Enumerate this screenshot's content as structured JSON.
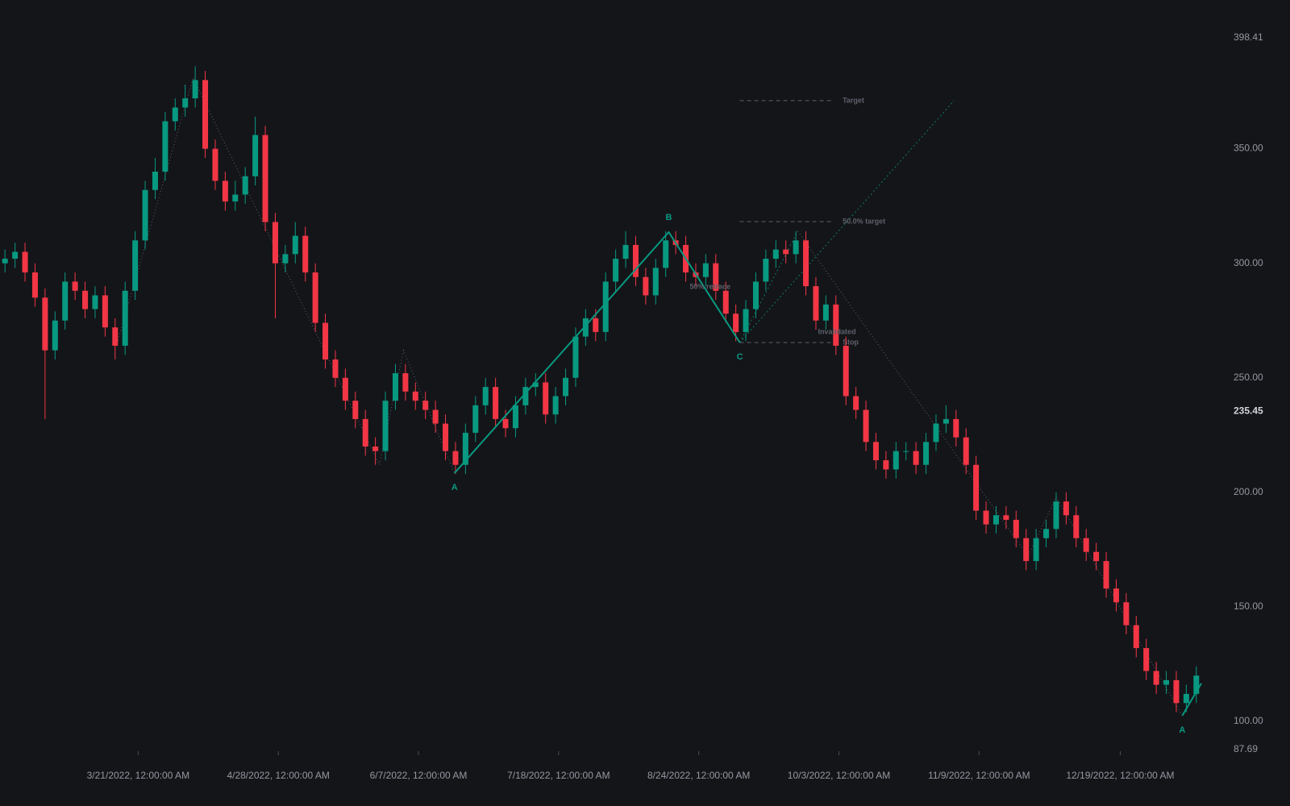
{
  "chart_data": {
    "type": "candlestick",
    "colors": {
      "up": "#089981",
      "down": "#f23645",
      "wave": "#089981",
      "guide": "#5d616b",
      "projection": "#0a7a68"
    },
    "open": [
      300,
      302,
      305,
      296,
      285,
      262,
      275,
      292,
      288,
      280,
      286,
      272,
      264,
      288,
      310,
      332,
      340,
      362,
      368,
      372,
      380,
      350,
      336,
      327,
      330,
      338,
      356,
      318,
      300,
      304,
      312,
      296,
      274,
      258,
      250,
      240,
      232,
      220,
      218,
      240,
      252,
      244,
      240,
      236,
      230,
      218,
      212,
      226,
      238,
      246,
      232,
      228,
      238,
      246,
      248,
      234,
      242,
      250,
      268,
      276,
      270,
      292,
      302,
      308,
      294,
      286,
      298,
      310,
      308,
      296,
      294,
      300,
      288,
      278,
      270,
      280,
      292,
      302,
      306,
      304,
      310,
      290,
      275,
      282,
      264,
      242,
      236,
      222,
      214,
      210,
      218,
      218,
      212,
      222,
      230,
      232,
      224,
      212,
      192,
      186,
      190,
      188,
      180,
      170,
      180,
      184,
      196,
      190,
      180,
      174,
      170,
      158,
      152,
      142,
      132,
      122,
      116,
      118,
      108,
      112
    ],
    "high": [
      306,
      309,
      309,
      300,
      289,
      279,
      296,
      296,
      292,
      290,
      290,
      276,
      292,
      314,
      336,
      346,
      366,
      372,
      378,
      386,
      384,
      354,
      340,
      336,
      342,
      364,
      360,
      322,
      308,
      318,
      316,
      300,
      278,
      262,
      254,
      244,
      236,
      224,
      244,
      256,
      256,
      248,
      244,
      240,
      234,
      222,
      230,
      242,
      250,
      250,
      236,
      242,
      250,
      252,
      252,
      246,
      254,
      272,
      280,
      280,
      296,
      306,
      314,
      312,
      298,
      302,
      314,
      314,
      312,
      300,
      304,
      304,
      292,
      282,
      284,
      296,
      306,
      310,
      310,
      314,
      314,
      294,
      286,
      286,
      268,
      246,
      240,
      226,
      218,
      222,
      222,
      222,
      226,
      234,
      238,
      236,
      228,
      216,
      196,
      194,
      194,
      192,
      184,
      184,
      188,
      200,
      200,
      194,
      184,
      178,
      174,
      162,
      156,
      146,
      136,
      126,
      122,
      122,
      116,
      124
    ],
    "low": [
      296,
      298,
      292,
      281,
      232,
      258,
      271,
      284,
      276,
      276,
      268,
      258,
      260,
      284,
      306,
      328,
      336,
      358,
      364,
      368,
      346,
      332,
      323,
      323,
      326,
      334,
      314,
      276,
      296,
      300,
      292,
      270,
      254,
      246,
      236,
      228,
      216,
      212,
      214,
      236,
      240,
      236,
      232,
      226,
      214,
      208,
      208,
      222,
      234,
      228,
      224,
      224,
      234,
      242,
      230,
      230,
      238,
      246,
      264,
      266,
      266,
      288,
      298,
      290,
      282,
      282,
      294,
      304,
      292,
      290,
      290,
      284,
      274,
      266,
      266,
      276,
      288,
      298,
      300,
      300,
      286,
      271,
      271,
      260,
      238,
      232,
      218,
      210,
      206,
      206,
      214,
      208,
      208,
      218,
      226,
      220,
      208,
      188,
      182,
      182,
      184,
      176,
      166,
      166,
      176,
      180,
      186,
      176,
      170,
      166,
      154,
      148,
      138,
      128,
      118,
      112,
      112,
      104,
      104,
      108
    ],
    "close": [
      302,
      305,
      296,
      285,
      262,
      275,
      292,
      288,
      280,
      286,
      272,
      264,
      288,
      310,
      332,
      340,
      362,
      368,
      372,
      380,
      350,
      336,
      327,
      330,
      338,
      356,
      318,
      300,
      304,
      312,
      296,
      274,
      258,
      250,
      240,
      232,
      220,
      218,
      240,
      252,
      244,
      240,
      236,
      230,
      218,
      212,
      226,
      238,
      246,
      232,
      228,
      238,
      246,
      248,
      234,
      242,
      250,
      268,
      276,
      270,
      292,
      302,
      308,
      294,
      286,
      298,
      310,
      308,
      296,
      294,
      300,
      288,
      278,
      270,
      280,
      292,
      302,
      306,
      304,
      310,
      290,
      275,
      282,
      264,
      242,
      236,
      222,
      214,
      210,
      218,
      218,
      212,
      222,
      230,
      232,
      224,
      212,
      192,
      186,
      190,
      188,
      180,
      170,
      180,
      184,
      196,
      190,
      180,
      174,
      170,
      158,
      152,
      142,
      132,
      122,
      116,
      118,
      108,
      112,
      120
    ],
    "xlim": [
      0,
      120
    ],
    "ylim": [
      87.69,
      398.41
    ],
    "yticks": [
      {
        "value": 398.41,
        "label": "398.41"
      },
      {
        "value": 350,
        "label": "350.00"
      },
      {
        "value": 300,
        "label": "300.00"
      },
      {
        "value": 250,
        "label": "250.00"
      },
      {
        "value": 200,
        "label": "200.00"
      },
      {
        "value": 150,
        "label": "150.00"
      },
      {
        "value": 100,
        "label": "100.00"
      },
      {
        "value": 87.69,
        "label": "87.69"
      }
    ],
    "last_price": {
      "value": 235.45,
      "label": "235.45"
    },
    "xticks": [
      {
        "value": 13.8,
        "label": "3/21/2022, 12:00:00 AM"
      },
      {
        "value": 27.8,
        "label": "4/28/2022, 12:00:00 AM"
      },
      {
        "value": 41.8,
        "label": "6/7/2022, 12:00:00 AM"
      },
      {
        "value": 55.8,
        "label": "7/18/2022, 12:00:00 AM"
      },
      {
        "value": 69.8,
        "label": "8/24/2022, 12:00:00 AM"
      },
      {
        "value": 83.8,
        "label": "10/3/2022, 12:00:00 AM"
      },
      {
        "value": 97.8,
        "label": "11/9/2022, 12:00:00 AM"
      },
      {
        "value": 111.9,
        "label": "12/19/2022, 12:00:00 AM"
      }
    ],
    "zigzag_lines": [
      {
        "x": [
          11.7,
          19.3,
          37.9,
          40.3,
          45.4
        ],
        "y": [
          265,
          381,
          212,
          262,
          208.4
        ]
      },
      {
        "x": [
          79.7,
          102.7,
          105.5,
          118.1
        ],
        "y": [
          314,
          172,
          198,
          102.5
        ]
      }
    ],
    "projection_lines": [
      {
        "x": [
          73.9,
          79.7
        ],
        "y": [
          265.4,
          314
        ]
      },
      {
        "x": [
          73.9,
          95.3
        ],
        "y": [
          265.4,
          371
        ]
      }
    ],
    "waves": [
      {
        "labels": [
          "A",
          "B",
          "C"
        ],
        "x": [
          45.4,
          66.8,
          73.9
        ],
        "y": [
          208.4,
          313.6,
          265.4
        ]
      },
      {
        "labels": [
          "A",
          null
        ],
        "x": [
          118.1,
          120
        ],
        "y": [
          102.5,
          116.6
        ]
      }
    ],
    "levels": {
      "x": [
        73.9,
        83.2
      ],
      "items": [
        {
          "label": "Target",
          "value": 371
        },
        {
          "label": "50.0% target",
          "value": 318.2
        },
        {
          "label": "Stop",
          "value": 265.4
        }
      ]
    },
    "annotations": [
      {
        "text": "50% retrace",
        "x": 68.9,
        "y": 289.7
      },
      {
        "text": "Invalidated",
        "x": 81.7,
        "y": 270
      }
    ]
  }
}
